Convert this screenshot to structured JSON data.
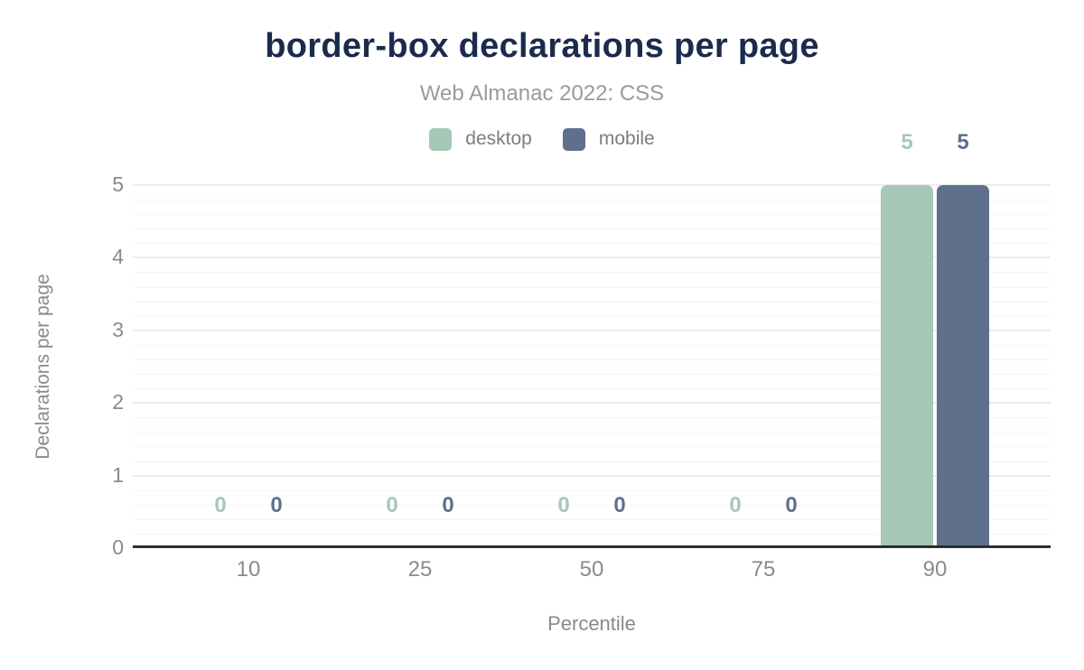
{
  "chart_data": {
    "type": "bar",
    "title": "border-box declarations per page",
    "subtitle": "Web Almanac 2022: CSS",
    "xlabel": "Percentile",
    "ylabel": "Declarations per page",
    "categories": [
      "10",
      "25",
      "50",
      "75",
      "90"
    ],
    "series": [
      {
        "name": "desktop",
        "color": "#a6c8b7",
        "values": [
          0,
          0,
          0,
          0,
          5
        ]
      },
      {
        "name": "mobile",
        "color": "#5f708d",
        "values": [
          0,
          0,
          0,
          0,
          5
        ]
      }
    ],
    "ylim": [
      0,
      5
    ],
    "yticks": [
      0,
      1,
      2,
      3,
      4,
      5
    ],
    "minor_grid_step": 0.2,
    "grid": true,
    "legend_position": "top",
    "value_labels": true
  },
  "colors": {
    "title": "#1a2b4d",
    "subtitle": "#9b9b9b",
    "axis_text": "#8a8a8a",
    "axis_line": "#2e2e2e",
    "grid_major": "#ebebeb",
    "grid_minor": "#f4f4f4",
    "background": "#ffffff"
  }
}
